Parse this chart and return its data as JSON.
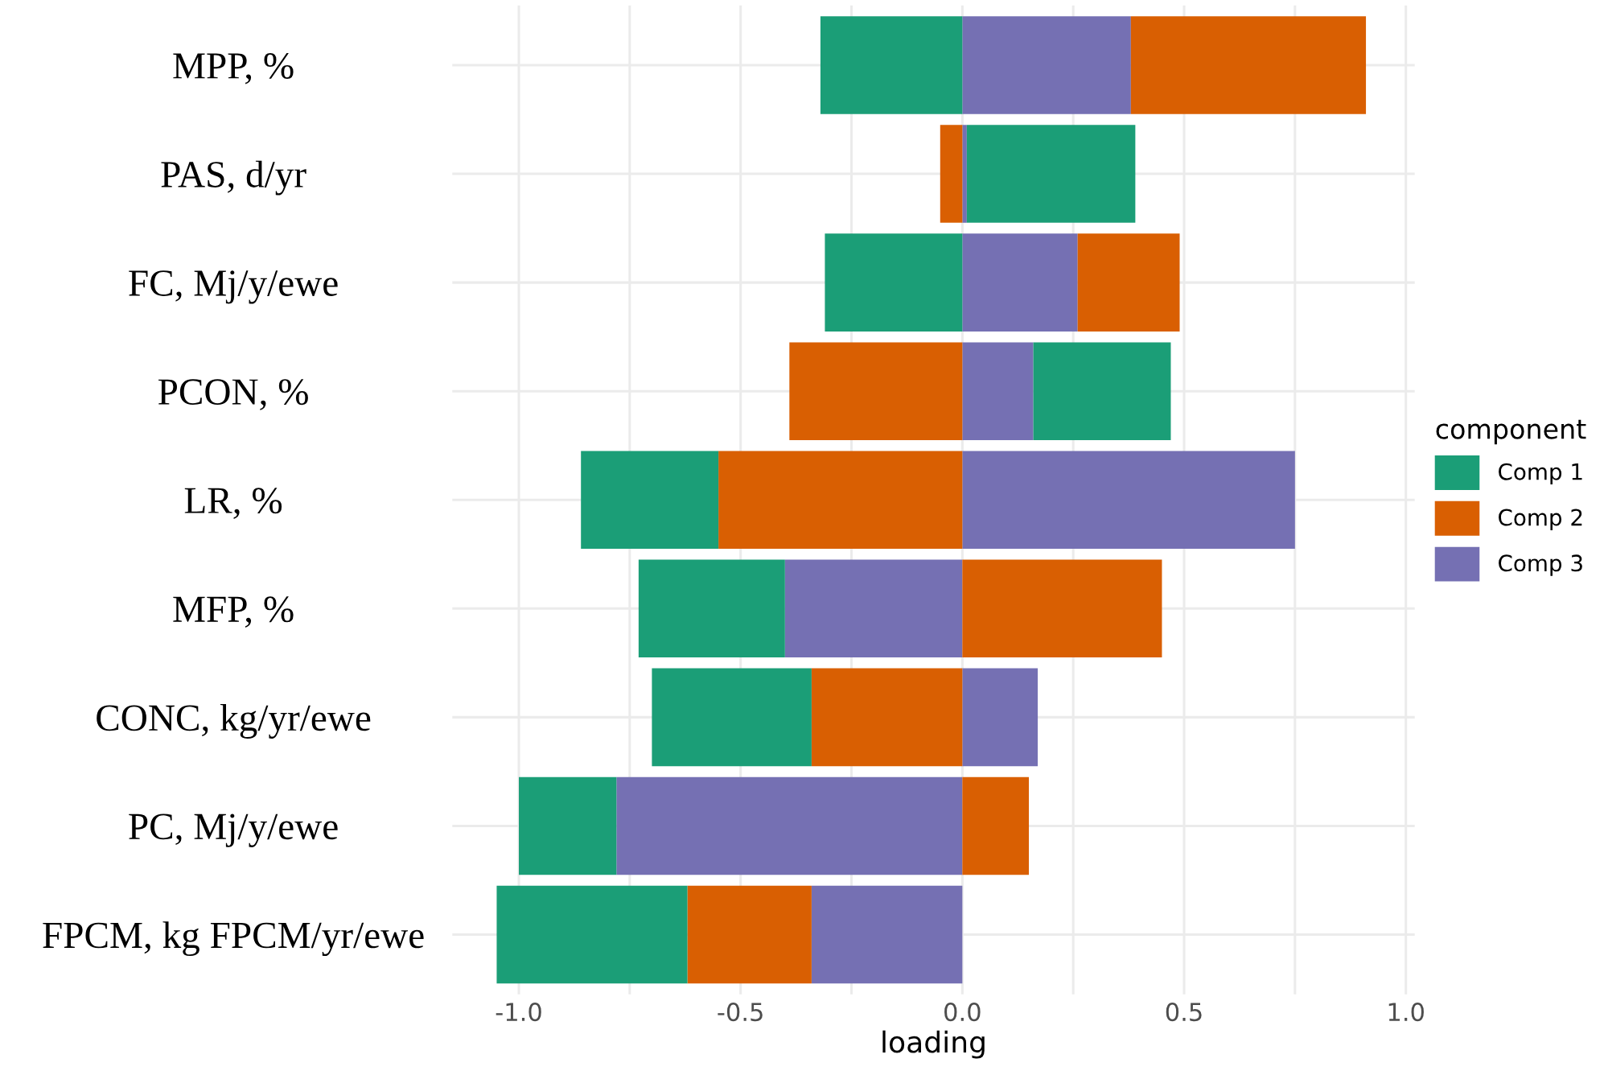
{
  "chart_data": {
    "type": "bar",
    "orientation": "horizontal",
    "stacked": true,
    "xlabel": "loading",
    "legend_title": "component",
    "categories": [
      "MPP, %",
      "PAS, d/yr",
      "FC, Mj/y/ewe",
      "PCON, %",
      "LR, %",
      "MFP, %",
      "CONC, kg/yr/ewe",
      "PC, Mj/y/ewe",
      "FPCM, kg FPCM/yr/ewe"
    ],
    "series": [
      {
        "name": "Comp 3",
        "color": "#7570b3",
        "values": [
          0.38,
          0.01,
          0.26,
          0.16,
          0.75,
          -0.4,
          0.17,
          -0.78,
          -0.34
        ]
      },
      {
        "name": "Comp 2",
        "color": "#d95f02",
        "values": [
          0.53,
          -0.05,
          0.23,
          -0.39,
          -0.55,
          0.45,
          -0.34,
          0.15,
          -0.28
        ]
      },
      {
        "name": "Comp 1",
        "color": "#1b9e77",
        "values": [
          -0.32,
          0.38,
          -0.31,
          0.31,
          -0.31,
          -0.33,
          -0.36,
          -0.22,
          -0.43
        ]
      }
    ],
    "xlim": [
      -1.15,
      1.02
    ],
    "xticks": [
      {
        "value": -1.0,
        "label": "-1.0"
      },
      {
        "value": -0.75,
        "label": null
      },
      -0.5,
      {
        "value": -0.25,
        "label": null
      },
      {
        "value": 0.0,
        "label": "0.0"
      },
      {
        "value": 0.25,
        "label": null
      },
      0.5,
      {
        "value": 0.75,
        "label": null
      },
      {
        "value": 1.0,
        "label": "1.0"
      }
    ],
    "grid": true,
    "legend": "right"
  }
}
